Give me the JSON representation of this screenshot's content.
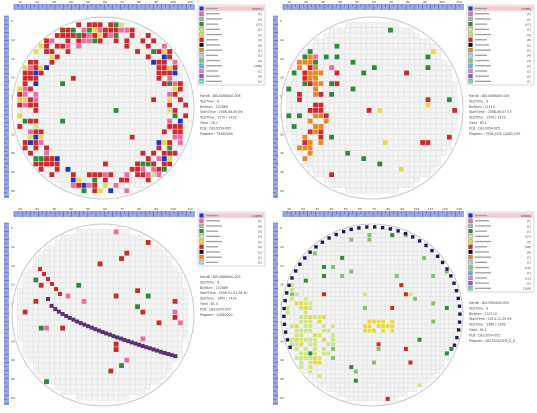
{
  "colors": {
    "ruler": "#9aa6e6",
    "grid": "#d8d8d8",
    "cell": "#f4f4f4",
    "bins": [
      "#2233cc",
      "#f06aa8",
      "#b0b0b0",
      "#2e8b3e",
      "#cfe58a",
      "#e8d84a",
      "#cc2b2b",
      "#111111",
      "#e88a2a",
      "#aad0ee",
      "#88c070",
      "#5bbad8",
      "#c98bd8",
      "#8a5bd0",
      "#6fd6c2"
    ]
  },
  "chart_data": [
    {
      "type": "heatmap",
      "pattern": "ring",
      "legend_counts": [
        "(8971)",
        "(1)",
        "(2)",
        "(27)",
        "(1)",
        "(1)",
        "(4)",
        "(8)",
        "(1)",
        "(1)",
        "(3)",
        "(168)",
        "(1)",
        "(4)",
        "(1)"
      ],
      "info": [
        "Hard8 : DELSS66A00-006",
        "TestTime : 9",
        "BinNum : 157889",
        "StartTime : 2008-06-09 09:",
        "TestTime : 1370 / 1429",
        "Yield : 76.7",
        "PCB : DEL0054-005",
        "Program : TES8V000"
      ],
      "x_ticks": [
        "10",
        "20",
        "30",
        "40",
        "50",
        "60",
        "70",
        "80",
        "90",
        "100",
        "110"
      ],
      "y_ticks": [
        "5",
        "10",
        "15",
        "20",
        "25",
        "30",
        "35",
        "40",
        "45",
        "50"
      ]
    },
    {
      "type": "heatmap",
      "pattern": "left-arc",
      "legend_counts": [
        "(1785)",
        "(1)",
        "(2)",
        "(27)",
        "(1)",
        "(4)",
        "(8)",
        "(1)",
        "(1)",
        "(4)",
        "(3)",
        "(1)",
        "(1)",
        "(1)",
        "(1)"
      ],
      "info": [
        "Hard8 : DELSS66A00-004",
        "TestTime : 9",
        "BinNum : 11114",
        "StartTime : 2008-06-07 07:",
        "TestTime : 1370 / 1429",
        "Yield : 85.1",
        "PCB : DEL0054-005",
        "Program : TES8_EDS_QUAD_D01"
      ],
      "x_ticks": [
        "10",
        "20",
        "30",
        "40",
        "50",
        "60",
        "70",
        "80",
        "90",
        "100",
        "110"
      ],
      "y_ticks": [
        "5",
        "10",
        "15",
        "20",
        "25",
        "30",
        "35",
        "40",
        "45",
        "50"
      ]
    },
    {
      "type": "heatmap",
      "pattern": "scratch",
      "legend_counts": [
        "(1466)",
        "(1)",
        "(4)",
        "(3)",
        "(2)",
        "(1)",
        "(3)",
        "(1)",
        "(1)",
        "(1)"
      ],
      "info": [
        "Hard8 : DELSS66A00-003",
        "TestTime : 9",
        "BinNum : 157889",
        "StartTime : 2008-01-01 06:30",
        "TestTime : 1400 / 1429",
        "Yield : 81.3",
        "PCB : DEL0054-005",
        "Program : SLE80000"
      ],
      "x_ticks": [
        "10",
        "20",
        "30",
        "40",
        "50",
        "60",
        "70",
        "80",
        "90",
        "100",
        "110"
      ],
      "y_ticks": [
        "5",
        "10",
        "15",
        "20",
        "25",
        "30",
        "35",
        "40",
        "45",
        "50"
      ]
    },
    {
      "type": "heatmap",
      "pattern": "edge-fan",
      "legend_counts": [
        "(2990)",
        "(1)",
        "(2)",
        "(1)",
        "(27)",
        "(3)",
        "(58)",
        "(4)",
        "(7)",
        "(1)",
        "(10)",
        "(1)",
        "(12)",
        "(1)",
        "(168)"
      ],
      "info": [
        "Hard8 : DELTS00A00-005",
        "TestTime : 9",
        "BinNum : 157110",
        "StartTime : 2014-11-29 09:",
        "TestTime : 1360 / 1399",
        "Yield : 95.2",
        "PCB : DEL0054-005",
        "Program : DELTS00ATH2_E_D"
      ],
      "x_ticks": [
        "10",
        "20",
        "30",
        "40",
        "50",
        "60",
        "70",
        "80",
        "90",
        "100",
        "110",
        "120",
        "130"
      ],
      "y_ticks": [
        "5",
        "10",
        "15",
        "20",
        "25",
        "30",
        "35",
        "40",
        "45",
        "50"
      ]
    }
  ]
}
